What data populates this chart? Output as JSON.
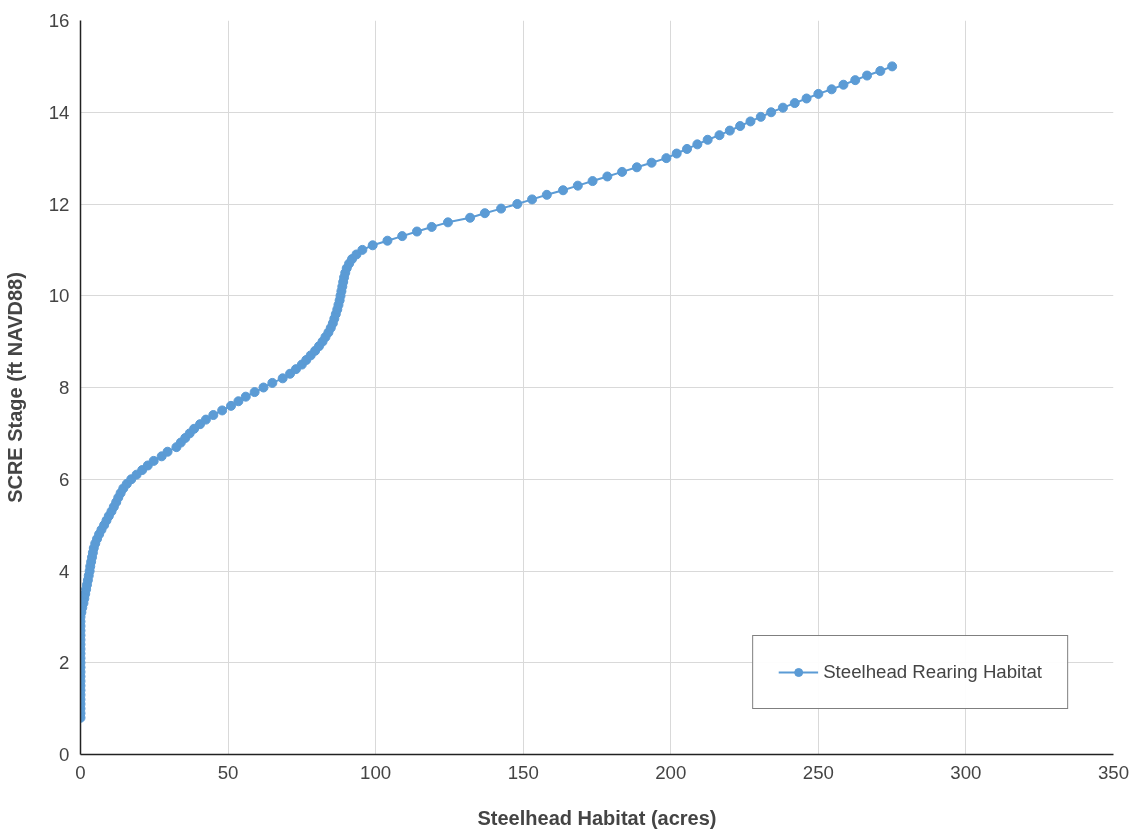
{
  "chart_data": {
    "type": "line",
    "xlabel": "Steelhead Habitat (acres)",
    "ylabel": "SCRE Stage (ft NAVD88)",
    "xlim": [
      0,
      350
    ],
    "xticks": [
      0,
      50,
      100,
      150,
      200,
      250,
      300,
      350
    ],
    "ylim": [
      0,
      16
    ],
    "yticks": [
      0,
      2,
      4,
      6,
      8,
      10,
      12,
      14,
      16
    ],
    "grid": true,
    "legend": "bottom right",
    "marker": "circle",
    "line_style": "solid",
    "series": [
      {
        "name": "Steelhead Rearing Habitat",
        "color": "#5b9bd5",
        "x": [
          0,
          0,
          0,
          0,
          0,
          0,
          0,
          0,
          0,
          0,
          0,
          0,
          0,
          0,
          0,
          0,
          0,
          0,
          0,
          0,
          0,
          0,
          0,
          0.3,
          0.6,
          1.0,
          1.3,
          1.6,
          1.9,
          2.2,
          2.5,
          2.8,
          3.1,
          3.3,
          3.6,
          3.9,
          4.2,
          4.5,
          5.0,
          5.6,
          6.3,
          7.1,
          8.0,
          8.8,
          9.6,
          10.5,
          11.3,
          12.1,
          12.8,
          13.6,
          14.5,
          15.7,
          17.2,
          19.0,
          20.9,
          22.8,
          24.8,
          27.5,
          29.5,
          32.5,
          34.0,
          35.5,
          37.0,
          38.5,
          40.5,
          42.5,
          45.0,
          48.0,
          51.0,
          53.5,
          56.0,
          59.0,
          62.0,
          65.0,
          68.5,
          71.0,
          73.0,
          75.0,
          76.5,
          78.0,
          79.5,
          80.8,
          82.0,
          83.0,
          84.0,
          84.8,
          85.5,
          86.0,
          86.5,
          87.0,
          87.4,
          87.8,
          88.1,
          88.4,
          88.7,
          89.0,
          89.3,
          89.7,
          90.2,
          91.0,
          92.0,
          93.5,
          95.5,
          99.0,
          104.0,
          109.0,
          114.0,
          119.0,
          124.5,
          132.0,
          137.0,
          142.5,
          148.0,
          153,
          158,
          163.5,
          168.5,
          173.5,
          178.5,
          183.5,
          188.5,
          193.5,
          198.5,
          202,
          205.5,
          209,
          212.5,
          216.5,
          220,
          223.5,
          227,
          230.5,
          234,
          238,
          242,
          246,
          250,
          254.5,
          258.5,
          262.5,
          266.5,
          271,
          275
        ],
        "values": [
          0.8,
          0.9,
          1.0,
          1.1,
          1.2,
          1.3,
          1.4,
          1.5,
          1.6,
          1.7,
          1.8,
          1.9,
          2.0,
          2.1,
          2.2,
          2.3,
          2.4,
          2.5,
          2.6,
          2.7,
          2.8,
          2.9,
          3.0,
          3.1,
          3.2,
          3.3,
          3.4,
          3.5,
          3.6,
          3.7,
          3.8,
          3.9,
          4.0,
          4.1,
          4.2,
          4.3,
          4.4,
          4.5,
          4.6,
          4.7,
          4.8,
          4.9,
          5.0,
          5.1,
          5.2,
          5.3,
          5.4,
          5.5,
          5.6,
          5.7,
          5.8,
          5.9,
          6.0,
          6.1,
          6.2,
          6.3,
          6.4,
          6.5,
          6.6,
          6.7,
          6.8,
          6.9,
          7.0,
          7.1,
          7.2,
          7.3,
          7.4,
          7.5,
          7.6,
          7.7,
          7.8,
          7.9,
          8.0,
          8.1,
          8.2,
          8.3,
          8.4,
          8.5,
          8.6,
          8.7,
          8.8,
          8.9,
          9.0,
          9.1,
          9.2,
          9.3,
          9.4,
          9.5,
          9.6,
          9.7,
          9.8,
          9.9,
          10.0,
          10.1,
          10.2,
          10.3,
          10.4,
          10.5,
          10.6,
          10.7,
          10.8,
          10.9,
          11.0,
          11.1,
          11.2,
          11.3,
          11.4,
          11.5,
          11.6,
          11.7,
          11.8,
          11.9,
          12.0,
          12.1,
          12.2,
          12.3,
          12.4,
          12.5,
          12.6,
          12.7,
          12.8,
          12.9,
          13.0,
          13.1,
          13.2,
          13.3,
          13.4,
          13.5,
          13.6,
          13.7,
          13.8,
          13.9,
          14.0,
          14.1,
          14.2,
          14.3,
          14.4,
          14.5,
          14.6,
          14.7,
          14.8,
          14.9,
          15.0
        ]
      }
    ]
  }
}
